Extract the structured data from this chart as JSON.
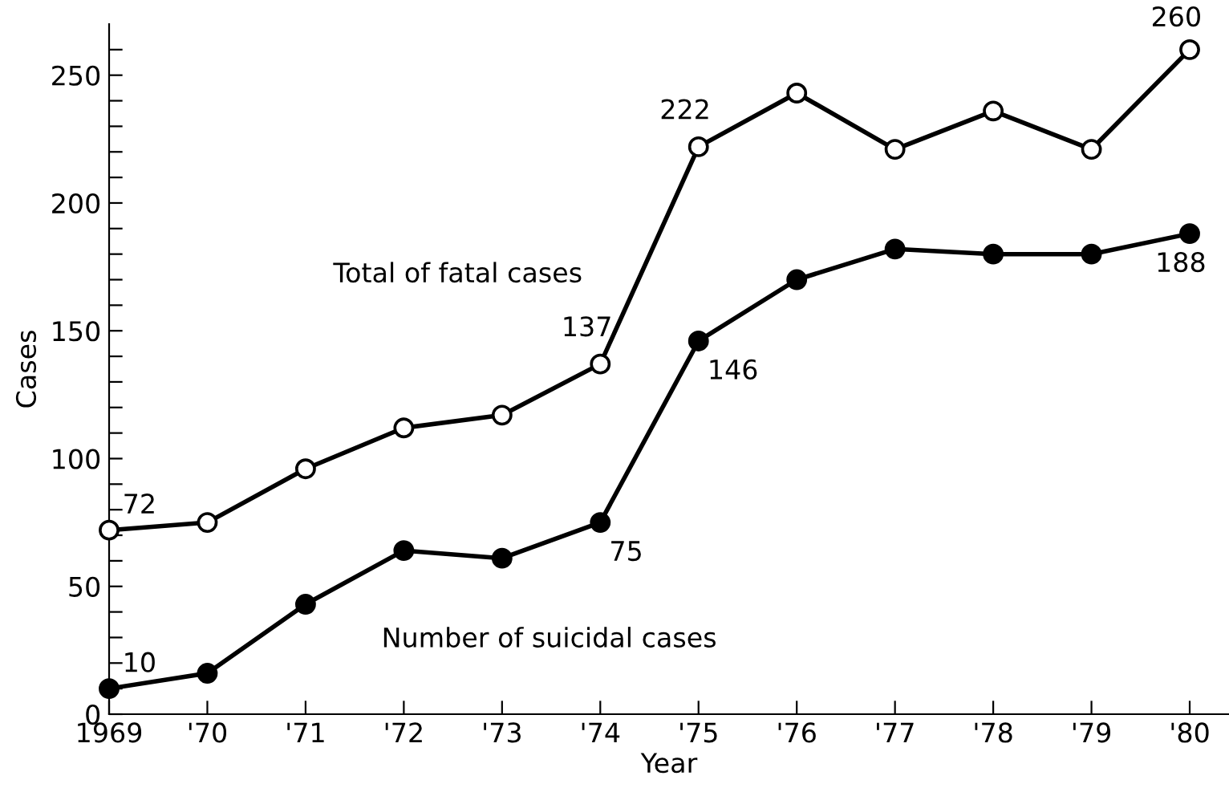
{
  "chart_data": {
    "type": "line",
    "xlabel": "Year",
    "ylabel": "Cases",
    "x": [
      1969,
      1970,
      1971,
      1972,
      1973,
      1974,
      1975,
      1976,
      1977,
      1978,
      1979,
      1980
    ],
    "series": [
      {
        "name": "Total of fatal cases",
        "color": "#000000",
        "values": [
          72,
          75,
          96,
          112,
          117,
          137,
          222,
          243,
          221,
          236,
          221,
          260
        ],
        "value_labels": [
          "72",
          null,
          null,
          null,
          null,
          "137",
          "222",
          null,
          null,
          null,
          null,
          "260"
        ]
      },
      {
        "name": "Number of suicidal cases",
        "color": "#000000",
        "values": [
          10,
          16,
          43,
          64,
          61,
          75,
          146,
          170,
          182,
          180,
          180,
          188
        ],
        "value_labels": [
          "10",
          null,
          null,
          null,
          null,
          "75",
          "146",
          null,
          null,
          null,
          null,
          "188"
        ]
      }
    ],
    "xlim": [
      1969,
      1980.4
    ],
    "ylim": [
      0,
      270
    ],
    "xticks": [
      1969,
      {
        "value": 1970,
        "label": "'70"
      },
      {
        "value": 1971,
        "label": "'71"
      },
      {
        "value": 1972,
        "label": "'72"
      },
      {
        "value": 1973,
        "label": "'73"
      },
      {
        "value": 1974,
        "label": "'74"
      },
      {
        "value": 1975,
        "label": "'75"
      },
      {
        "value": 1976,
        "label": "'76"
      },
      {
        "value": 1977,
        "label": "'77"
      },
      {
        "value": 1978,
        "label": "'78"
      },
      {
        "value": 1979,
        "label": "'79"
      },
      {
        "value": 1980,
        "label": "'80"
      }
    ],
    "yticks": [
      0,
      {
        "value": 10,
        "label": null
      },
      {
        "value": 20,
        "label": null
      },
      {
        "value": 30,
        "label": null
      },
      {
        "value": 40,
        "label": null
      },
      50,
      {
        "value": 60,
        "label": null
      },
      {
        "value": 70,
        "label": null
      },
      {
        "value": 80,
        "label": null
      },
      {
        "value": 90,
        "label": null
      },
      100,
      {
        "value": 110,
        "label": null
      },
      {
        "value": 120,
        "label": null
      },
      {
        "value": 130,
        "label": null
      },
      {
        "value": 140,
        "label": null
      },
      150,
      {
        "value": 160,
        "label": null
      },
      {
        "value": 170,
        "label": null
      },
      {
        "value": 180,
        "label": null
      },
      {
        "value": 190,
        "label": null
      },
      200,
      {
        "value": 210,
        "label": null
      },
      {
        "value": 220,
        "label": null
      },
      {
        "value": 230,
        "label": null
      },
      {
        "value": 240,
        "label": null
      },
      250,
      {
        "value": 260,
        "label": null
      }
    ],
    "marker": "circle",
    "line_style": "solid",
    "grid": false,
    "legend": false
  }
}
